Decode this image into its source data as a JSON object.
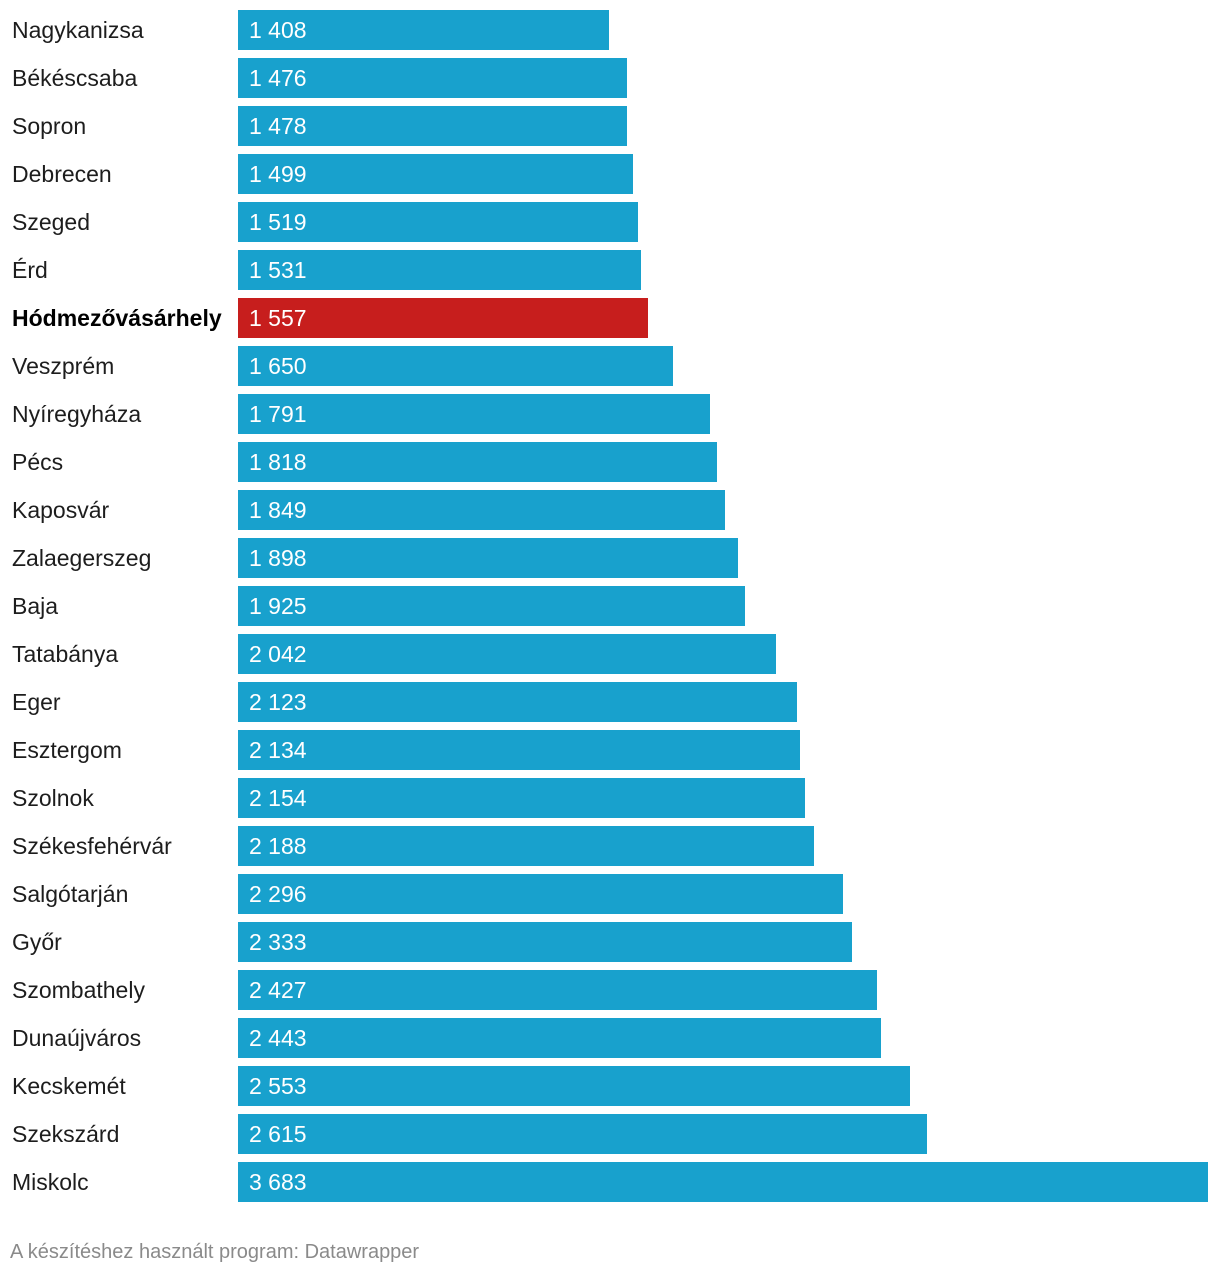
{
  "chart_data": {
    "type": "bar",
    "orientation": "horizontal",
    "categories": [
      "Nagykanizsa",
      "Békéscsaba",
      "Sopron",
      "Debrecen",
      "Szeged",
      "Érd",
      "Hódmezővásárhely",
      "Veszprém",
      "Nyíregyháza",
      "Pécs",
      "Kaposvár",
      "Zalaegerszeg",
      "Baja",
      "Tatabánya",
      "Eger",
      "Esztergom",
      "Szolnok",
      "Székesfehérvár",
      "Salgótarján",
      "Győr",
      "Szombathely",
      "Dunaújváros",
      "Kecskemét",
      "Szekszárd",
      "Miskolc"
    ],
    "values": [
      1408,
      1476,
      1478,
      1499,
      1519,
      1531,
      1557,
      1650,
      1791,
      1818,
      1849,
      1898,
      1925,
      2042,
      2123,
      2134,
      2154,
      2188,
      2296,
      2333,
      2427,
      2443,
      2553,
      2615,
      3683
    ],
    "value_labels": [
      "1 408",
      "1 476",
      "1 478",
      "1 499",
      "1 519",
      "1 531",
      "1 557",
      "1 650",
      "1 791",
      "1 818",
      "1 849",
      "1 898",
      "1 925",
      "2 042",
      "2 123",
      "2 134",
      "2 154",
      "2 188",
      "2 296",
      "2 333",
      "2 427",
      "2 443",
      "2 553",
      "2 615",
      "3 683"
    ],
    "highlight": "Hódmezővásárhely",
    "xlim": [
      0,
      3683
    ],
    "colors": {
      "bar": "#18a1cd",
      "highlight": "#c71e1d"
    },
    "title": "",
    "xlabel": "",
    "ylabel": ""
  },
  "footer": {
    "credit": "A készítéshez használt program: Datawrapper"
  }
}
